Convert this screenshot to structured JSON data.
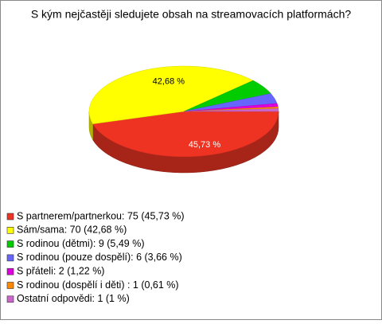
{
  "chart_data": {
    "type": "pie",
    "title": "S kým nejčastěji sledujete obsah na streamovacích platformách?",
    "categories": [
      "S partnerem/partnerkou: 75 (45,73 %)",
      "Sám/sama: 70 (42,68 %)",
      "S rodinou (dětmi): 9 (5,49 %)",
      "S rodinou (pouze dospělí): 6 (3,66 %)",
      "S přáteli: 2 (1,22 %)",
      "S rodinou (dospělí i děti) : 1 (0,61 %)",
      "Ostatní odpovědi: 1 (1 %)"
    ],
    "values": [
      45.73,
      42.68,
      5.49,
      3.66,
      1.22,
      0.61,
      1
    ],
    "value_labels": [
      "45,73 %",
      "42,68 %",
      null,
      null,
      null,
      null,
      null
    ],
    "colors": [
      "#ee3322",
      "#ffff00",
      "#00cc00",
      "#6666ff",
      "#dd00dd",
      "#ff8800",
      "#cc66cc"
    ]
  }
}
